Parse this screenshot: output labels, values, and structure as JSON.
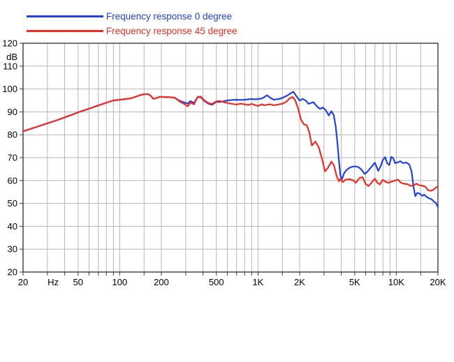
{
  "chart_data": {
    "type": "line",
    "title": "",
    "xlabel": "Hz",
    "ylabel": "dB",
    "x_scale": "log",
    "xlim": [
      20,
      20000
    ],
    "ylim": [
      20,
      120
    ],
    "grid": true,
    "legend_position": "top-left",
    "grid_color": "#b5b5b5",
    "border_color": "#3a3a3a",
    "x_gridline_freqs": [
      30,
      40,
      50,
      60,
      70,
      80,
      90,
      100,
      150,
      200,
      300,
      400,
      500,
      600,
      700,
      800,
      900,
      1000,
      1500,
      2000,
      3000,
      4000,
      5000,
      6000,
      7000,
      8000,
      9000,
      10000,
      15000
    ],
    "y_gridline_db": [
      30,
      40,
      50,
      60,
      70,
      80,
      90,
      100,
      110
    ],
    "x_tick_labels": [
      {
        "label": "20",
        "freq": 20
      },
      {
        "label": "Hz",
        "freq": 33
      },
      {
        "label": "50",
        "freq": 50
      },
      {
        "label": "100",
        "freq": 100
      },
      {
        "label": "200",
        "freq": 200
      },
      {
        "label": "500",
        "freq": 500
      },
      {
        "label": "1K",
        "freq": 1000
      },
      {
        "label": "2K",
        "freq": 2000
      },
      {
        "label": "5K",
        "freq": 5000
      },
      {
        "label": "10K",
        "freq": 10000
      },
      {
        "label": "20K",
        "freq": 20000
      }
    ],
    "y_tick_labels": [
      "120",
      "110",
      "100",
      "90",
      "80",
      "70",
      "60",
      "50",
      "40",
      "30",
      "20"
    ],
    "y_unit_label": "dB",
    "series": [
      {
        "name": "Frequency response 0 degree",
        "color": "#2341dc",
        "points": [
          [
            20,
            81.5
          ],
          [
            25,
            83.4
          ],
          [
            30,
            85.0
          ],
          [
            35,
            86.3
          ],
          [
            40,
            87.6
          ],
          [
            45,
            88.7
          ],
          [
            50,
            89.8
          ],
          [
            60,
            91.4
          ],
          [
            70,
            92.8
          ],
          [
            80,
            94.0
          ],
          [
            90,
            95.0
          ],
          [
            100,
            95.3
          ],
          [
            110,
            95.6
          ],
          [
            120,
            95.9
          ],
          [
            130,
            96.6
          ],
          [
            140,
            97.3
          ],
          [
            150,
            97.7
          ],
          [
            160,
            97.8
          ],
          [
            168,
            97.0
          ],
          [
            175,
            95.7
          ],
          [
            185,
            96.1
          ],
          [
            195,
            96.6
          ],
          [
            210,
            96.5
          ],
          [
            230,
            96.4
          ],
          [
            250,
            96.2
          ],
          [
            270,
            94.9
          ],
          [
            290,
            94.2
          ],
          [
            310,
            93.6
          ],
          [
            325,
            94.7
          ],
          [
            345,
            93.9
          ],
          [
            365,
            96.3
          ],
          [
            385,
            96.5
          ],
          [
            410,
            94.7
          ],
          [
            440,
            93.5
          ],
          [
            465,
            93.1
          ],
          [
            500,
            94.4
          ],
          [
            530,
            94.3
          ],
          [
            560,
            94.6
          ],
          [
            600,
            95.0
          ],
          [
            650,
            95.2
          ],
          [
            700,
            95.3
          ],
          [
            750,
            95.2
          ],
          [
            800,
            95.3
          ],
          [
            850,
            95.5
          ],
          [
            900,
            95.6
          ],
          [
            950,
            95.5
          ],
          [
            1000,
            95.6
          ],
          [
            1060,
            95.8
          ],
          [
            1110,
            96.4
          ],
          [
            1160,
            97.3
          ],
          [
            1230,
            96.1
          ],
          [
            1300,
            95.3
          ],
          [
            1400,
            95.6
          ],
          [
            1500,
            96.1
          ],
          [
            1600,
            96.9
          ],
          [
            1700,
            97.9
          ],
          [
            1800,
            98.8
          ],
          [
            1900,
            96.8
          ],
          [
            2000,
            94.9
          ],
          [
            2100,
            95.7
          ],
          [
            2220,
            94.9
          ],
          [
            2320,
            93.5
          ],
          [
            2420,
            93.9
          ],
          [
            2520,
            94.2
          ],
          [
            2650,
            92.6
          ],
          [
            2800,
            91.3
          ],
          [
            2950,
            91.9
          ],
          [
            3100,
            90.6
          ],
          [
            3250,
            88.4
          ],
          [
            3400,
            90.3
          ],
          [
            3530,
            88.5
          ],
          [
            3650,
            83.5
          ],
          [
            3750,
            76.5
          ],
          [
            3850,
            68.5
          ],
          [
            3950,
            62.0
          ],
          [
            4050,
            60.6
          ],
          [
            4200,
            63.3
          ],
          [
            4400,
            64.8
          ],
          [
            4600,
            65.6
          ],
          [
            4800,
            66.0
          ],
          [
            5000,
            66.2
          ],
          [
            5300,
            65.9
          ],
          [
            5600,
            64.8
          ],
          [
            5900,
            62.9
          ],
          [
            6100,
            63.5
          ],
          [
            6400,
            65.0
          ],
          [
            6700,
            66.4
          ],
          [
            7000,
            67.8
          ],
          [
            7200,
            66.0
          ],
          [
            7400,
            64.2
          ],
          [
            7700,
            66.2
          ],
          [
            8000,
            69.0
          ],
          [
            8300,
            70.2
          ],
          [
            8600,
            67.5
          ],
          [
            8900,
            66.8
          ],
          [
            9200,
            70.3
          ],
          [
            9500,
            69.8
          ],
          [
            9800,
            67.6
          ],
          [
            10200,
            67.9
          ],
          [
            10700,
            68.4
          ],
          [
            11200,
            67.6
          ],
          [
            11800,
            67.9
          ],
          [
            12400,
            67.0
          ],
          [
            12900,
            64.0
          ],
          [
            13300,
            57.5
          ],
          [
            13700,
            53.2
          ],
          [
            14200,
            54.6
          ],
          [
            14800,
            54.2
          ],
          [
            15400,
            53.3
          ],
          [
            15900,
            53.8
          ],
          [
            16600,
            52.8
          ],
          [
            17300,
            52.2
          ],
          [
            18000,
            51.8
          ],
          [
            18700,
            50.8
          ],
          [
            19300,
            50.2
          ],
          [
            20000,
            48.5
          ]
        ]
      },
      {
        "name": "Frequency response 45 degree",
        "color": "#ee2e24",
        "points": [
          [
            20,
            81.5
          ],
          [
            25,
            83.4
          ],
          [
            30,
            85.0
          ],
          [
            35,
            86.3
          ],
          [
            40,
            87.6
          ],
          [
            45,
            88.7
          ],
          [
            50,
            89.8
          ],
          [
            60,
            91.4
          ],
          [
            70,
            92.8
          ],
          [
            80,
            94.0
          ],
          [
            90,
            95.0
          ],
          [
            100,
            95.3
          ],
          [
            110,
            95.6
          ],
          [
            120,
            95.9
          ],
          [
            130,
            96.6
          ],
          [
            140,
            97.3
          ],
          [
            150,
            97.7
          ],
          [
            160,
            97.8
          ],
          [
            168,
            97.0
          ],
          [
            175,
            95.7
          ],
          [
            185,
            96.1
          ],
          [
            195,
            96.6
          ],
          [
            210,
            96.5
          ],
          [
            230,
            96.4
          ],
          [
            250,
            96.2
          ],
          [
            270,
            94.6
          ],
          [
            290,
            93.6
          ],
          [
            310,
            92.4
          ],
          [
            325,
            94.1
          ],
          [
            345,
            93.3
          ],
          [
            365,
            96.5
          ],
          [
            385,
            96.7
          ],
          [
            410,
            95.0
          ],
          [
            440,
            93.8
          ],
          [
            465,
            93.5
          ],
          [
            500,
            94.6
          ],
          [
            530,
            94.8
          ],
          [
            560,
            94.3
          ],
          [
            600,
            93.9
          ],
          [
            650,
            93.5
          ],
          [
            700,
            93.2
          ],
          [
            750,
            93.6
          ],
          [
            800,
            93.3
          ],
          [
            850,
            93.0
          ],
          [
            900,
            93.5
          ],
          [
            950,
            93.0
          ],
          [
            1000,
            92.6
          ],
          [
            1060,
            93.3
          ],
          [
            1110,
            92.9
          ],
          [
            1160,
            93.1
          ],
          [
            1230,
            93.3
          ],
          [
            1300,
            92.9
          ],
          [
            1400,
            93.2
          ],
          [
            1500,
            93.6
          ],
          [
            1600,
            94.4
          ],
          [
            1700,
            96.0
          ],
          [
            1780,
            96.5
          ],
          [
            1860,
            95.0
          ],
          [
            1950,
            91.5
          ],
          [
            2050,
            86.5
          ],
          [
            2150,
            84.5
          ],
          [
            2250,
            84.2
          ],
          [
            2350,
            81.0
          ],
          [
            2450,
            75.3
          ],
          [
            2600,
            77.0
          ],
          [
            2750,
            74.5
          ],
          [
            2900,
            69.5
          ],
          [
            3050,
            64.0
          ],
          [
            3200,
            65.5
          ],
          [
            3400,
            68.3
          ],
          [
            3550,
            66.5
          ],
          [
            3700,
            62.0
          ],
          [
            3850,
            59.7
          ],
          [
            3950,
            60.8
          ],
          [
            4100,
            59.3
          ],
          [
            4300,
            60.4
          ],
          [
            4600,
            60.6
          ],
          [
            4900,
            60.0
          ],
          [
            5100,
            59.0
          ],
          [
            5400,
            61.0
          ],
          [
            5700,
            61.5
          ],
          [
            6000,
            58.5
          ],
          [
            6300,
            57.6
          ],
          [
            6600,
            59.0
          ],
          [
            7000,
            60.8
          ],
          [
            7300,
            59.0
          ],
          [
            7600,
            58.3
          ],
          [
            8000,
            60.3
          ],
          [
            8400,
            59.4
          ],
          [
            8800,
            59.0
          ],
          [
            9300,
            59.6
          ],
          [
            9800,
            60.0
          ],
          [
            10300,
            60.4
          ],
          [
            10800,
            59.0
          ],
          [
            11400,
            58.6
          ],
          [
            12000,
            58.4
          ],
          [
            12700,
            57.6
          ],
          [
            13400,
            58.0
          ],
          [
            14000,
            58.6
          ],
          [
            14700,
            57.9
          ],
          [
            15500,
            57.7
          ],
          [
            16200,
            57.3
          ],
          [
            17000,
            55.8
          ],
          [
            17800,
            55.5
          ],
          [
            18600,
            56.0
          ],
          [
            19300,
            56.8
          ],
          [
            20000,
            57.5
          ]
        ]
      }
    ]
  },
  "legend": {
    "item_0deg": "Frequency response 0 degree",
    "item_45deg": "Frequency response 45 degree"
  }
}
